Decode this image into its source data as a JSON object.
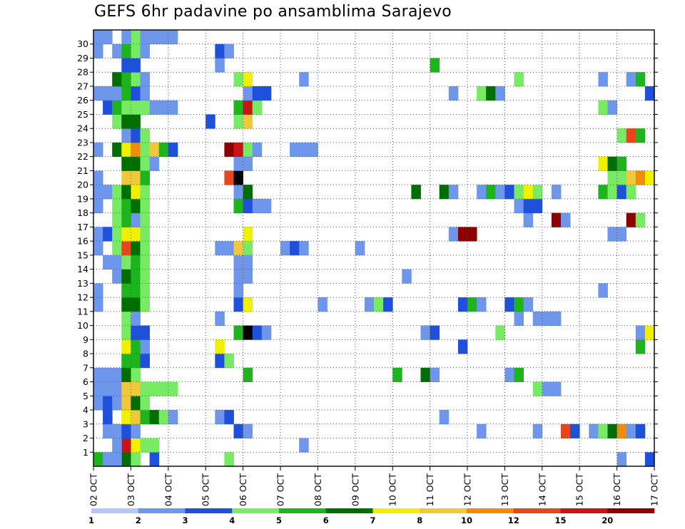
{
  "chart_data": {
    "type": "heatmap",
    "title": "GEFS 6hr padavine po ansamblima Sarajevo",
    "xlabel": "",
    "ylabel": "",
    "x_tick_labels": [
      "02 OCT",
      "03 OCT",
      "04 OCT",
      "05 OCT",
      "06 OCT",
      "07 OCT",
      "08 OCT",
      "09 OCT",
      "10 OCT",
      "11 OCT",
      "12 OCT",
      "13 OCT",
      "14 OCT",
      "15 OCT",
      "16 OCT",
      "17 OCT"
    ],
    "y_tick_labels": [
      "1",
      "2",
      "3",
      "4",
      "5",
      "6",
      "7",
      "8",
      "9",
      "10",
      "11",
      "12",
      "13",
      "14",
      "15",
      "16",
      "17",
      "18",
      "19",
      "20",
      "21",
      "22",
      "23",
      "24",
      "25",
      "26",
      "27",
      "28",
      "29",
      "30"
    ],
    "members": 31,
    "steps": 60,
    "grid": "dotted",
    "legend": {
      "position": "bottom",
      "levels": [
        1,
        2,
        3,
        4,
        5,
        6,
        7,
        8,
        10,
        12,
        15,
        20
      ],
      "labels": [
        "1",
        "2",
        "3",
        "4",
        "5",
        "6",
        "7",
        "8",
        "10",
        "12",
        "15",
        "20"
      ],
      "colors": [
        "#b4c8f5",
        "#6e96eb",
        "#1e50dc",
        "#78eb64",
        "#1eb41e",
        "#006e00",
        "#f0f000",
        "#f0c83c",
        "#f08c0a",
        "#e6461e",
        "#c81414",
        "#8c0000"
      ]
    },
    "cells": [
      [
        0,
        0,
        4
      ],
      [
        0,
        3,
        5
      ],
      [
        0,
        4,
        3
      ],
      [
        0,
        6,
        2
      ],
      [
        0,
        14,
        3
      ],
      [
        0,
        59,
        2
      ],
      [
        0,
        1,
        1
      ],
      [
        0,
        2,
        1
      ],
      [
        0,
        56,
        1
      ],
      [
        1,
        3,
        10
      ],
      [
        1,
        4,
        6
      ],
      [
        1,
        5,
        3
      ],
      [
        1,
        6,
        3
      ],
      [
        1,
        2,
        1
      ],
      [
        1,
        22,
        1
      ],
      [
        2,
        1,
        1
      ],
      [
        2,
        2,
        1
      ],
      [
        2,
        3,
        2
      ],
      [
        2,
        4,
        1
      ],
      [
        2,
        15,
        2
      ],
      [
        2,
        16,
        1
      ],
      [
        2,
        41,
        1
      ],
      [
        2,
        47,
        1
      ],
      [
        2,
        50,
        9
      ],
      [
        2,
        51,
        2
      ],
      [
        2,
        53,
        1
      ],
      [
        2,
        54,
        3
      ],
      [
        2,
        55,
        5
      ],
      [
        2,
        56,
        8
      ],
      [
        2,
        57,
        1
      ],
      [
        2,
        58,
        2
      ],
      [
        3,
        1,
        2
      ],
      [
        3,
        3,
        6
      ],
      [
        3,
        4,
        7
      ],
      [
        3,
        5,
        4
      ],
      [
        3,
        6,
        5
      ],
      [
        3,
        7,
        3
      ],
      [
        3,
        8,
        1
      ],
      [
        3,
        13,
        1
      ],
      [
        3,
        14,
        2
      ],
      [
        3,
        37,
        1
      ],
      [
        4,
        0,
        1
      ],
      [
        4,
        1,
        2
      ],
      [
        4,
        2,
        1
      ],
      [
        4,
        3,
        7
      ],
      [
        4,
        4,
        5
      ],
      [
        4,
        5,
        3
      ],
      [
        5,
        0,
        1
      ],
      [
        5,
        1,
        1
      ],
      [
        5,
        2,
        1
      ],
      [
        5,
        3,
        7
      ],
      [
        5,
        4,
        7
      ],
      [
        5,
        5,
        3
      ],
      [
        5,
        6,
        3
      ],
      [
        5,
        7,
        3
      ],
      [
        5,
        8,
        3
      ],
      [
        5,
        47,
        3
      ],
      [
        5,
        48,
        1
      ],
      [
        5,
        49,
        1
      ],
      [
        6,
        0,
        1
      ],
      [
        6,
        1,
        1
      ],
      [
        6,
        2,
        1
      ],
      [
        6,
        3,
        5
      ],
      [
        6,
        4,
        3
      ],
      [
        6,
        16,
        4
      ],
      [
        6,
        32,
        4
      ],
      [
        6,
        35,
        5
      ],
      [
        6,
        36,
        1
      ],
      [
        6,
        44,
        1
      ],
      [
        6,
        45,
        4
      ],
      [
        7,
        3,
        4
      ],
      [
        7,
        4,
        4
      ],
      [
        7,
        5,
        2
      ],
      [
        7,
        13,
        2
      ],
      [
        7,
        14,
        3
      ],
      [
        8,
        3,
        6
      ],
      [
        8,
        4,
        4
      ],
      [
        8,
        5,
        1
      ],
      [
        8,
        13,
        6
      ],
      [
        8,
        39,
        2
      ],
      [
        8,
        58,
        4
      ],
      [
        9,
        3,
        3
      ],
      [
        9,
        4,
        2
      ],
      [
        9,
        5,
        2
      ],
      [
        9,
        15,
        4
      ],
      [
        9,
        16,
        12
      ],
      [
        9,
        17,
        2
      ],
      [
        9,
        18,
        1
      ],
      [
        9,
        35,
        1
      ],
      [
        9,
        36,
        2
      ],
      [
        9,
        43,
        3
      ],
      [
        9,
        58,
        1
      ],
      [
        9,
        59,
        6
      ],
      [
        10,
        3,
        3
      ],
      [
        10,
        4,
        1
      ],
      [
        10,
        13,
        1
      ],
      [
        10,
        45,
        1
      ],
      [
        10,
        47,
        1
      ],
      [
        10,
        48,
        1
      ],
      [
        10,
        49,
        1
      ],
      [
        11,
        0,
        1
      ],
      [
        11,
        3,
        5
      ],
      [
        11,
        4,
        5
      ],
      [
        11,
        5,
        3
      ],
      [
        11,
        15,
        2
      ],
      [
        11,
        16,
        6
      ],
      [
        11,
        24,
        1
      ],
      [
        11,
        29,
        1
      ],
      [
        11,
        30,
        3
      ],
      [
        11,
        31,
        2
      ],
      [
        11,
        39,
        2
      ],
      [
        11,
        40,
        4
      ],
      [
        11,
        41,
        1
      ],
      [
        11,
        44,
        2
      ],
      [
        11,
        45,
        4
      ],
      [
        11,
        46,
        1
      ],
      [
        12,
        0,
        1
      ],
      [
        12,
        3,
        4
      ],
      [
        12,
        4,
        4
      ],
      [
        12,
        5,
        3
      ],
      [
        12,
        15,
        1
      ],
      [
        12,
        54,
        1
      ],
      [
        13,
        2,
        1
      ],
      [
        13,
        3,
        5
      ],
      [
        13,
        4,
        4
      ],
      [
        13,
        5,
        3
      ],
      [
        13,
        15,
        1
      ],
      [
        13,
        16,
        1
      ],
      [
        13,
        33,
        1
      ],
      [
        14,
        1,
        1
      ],
      [
        14,
        2,
        1
      ],
      [
        14,
        3,
        3
      ],
      [
        14,
        4,
        4
      ],
      [
        14,
        5,
        3
      ],
      [
        14,
        15,
        1
      ],
      [
        14,
        16,
        1
      ],
      [
        15,
        0,
        1
      ],
      [
        15,
        2,
        3
      ],
      [
        15,
        3,
        9
      ],
      [
        15,
        4,
        5
      ],
      [
        15,
        5,
        3
      ],
      [
        15,
        13,
        1
      ],
      [
        15,
        14,
        1
      ],
      [
        15,
        15,
        7
      ],
      [
        15,
        16,
        3
      ],
      [
        15,
        20,
        1
      ],
      [
        15,
        21,
        2
      ],
      [
        15,
        22,
        1
      ],
      [
        15,
        28,
        1
      ],
      [
        16,
        0,
        1
      ],
      [
        16,
        1,
        2
      ],
      [
        16,
        2,
        3
      ],
      [
        16,
        3,
        6
      ],
      [
        16,
        4,
        6
      ],
      [
        16,
        5,
        3
      ],
      [
        16,
        16,
        6
      ],
      [
        16,
        38,
        1
      ],
      [
        16,
        39,
        11
      ],
      [
        16,
        40,
        11
      ],
      [
        16,
        55,
        1
      ],
      [
        16,
        56,
        1
      ],
      [
        17,
        2,
        3
      ],
      [
        17,
        3,
        4
      ],
      [
        17,
        4,
        1
      ],
      [
        17,
        5,
        3
      ],
      [
        17,
        46,
        1
      ],
      [
        17,
        49,
        11
      ],
      [
        17,
        50,
        1
      ],
      [
        17,
        57,
        11
      ],
      [
        17,
        58,
        3
      ],
      [
        18,
        0,
        1
      ],
      [
        18,
        2,
        3
      ],
      [
        18,
        3,
        4
      ],
      [
        18,
        4,
        5
      ],
      [
        18,
        5,
        3
      ],
      [
        18,
        15,
        4
      ],
      [
        18,
        16,
        2
      ],
      [
        18,
        17,
        1
      ],
      [
        18,
        18,
        1
      ],
      [
        18,
        45,
        1
      ],
      [
        18,
        46,
        2
      ],
      [
        18,
        47,
        2
      ],
      [
        19,
        0,
        1
      ],
      [
        19,
        1,
        1
      ],
      [
        19,
        2,
        3
      ],
      [
        19,
        3,
        5
      ],
      [
        19,
        4,
        6
      ],
      [
        19,
        5,
        3
      ],
      [
        19,
        15,
        1
      ],
      [
        19,
        16,
        5
      ],
      [
        19,
        34,
        5
      ],
      [
        19,
        37,
        5
      ],
      [
        19,
        38,
        1
      ],
      [
        19,
        41,
        1
      ],
      [
        19,
        42,
        4
      ],
      [
        19,
        43,
        1
      ],
      [
        19,
        44,
        2
      ],
      [
        19,
        45,
        3
      ],
      [
        19,
        46,
        6
      ],
      [
        19,
        47,
        3
      ],
      [
        19,
        49,
        1
      ],
      [
        19,
        54,
        4
      ],
      [
        19,
        55,
        3
      ],
      [
        19,
        56,
        2
      ],
      [
        19,
        57,
        3
      ],
      [
        20,
        0,
        1
      ],
      [
        20,
        3,
        7
      ],
      [
        20,
        4,
        7
      ],
      [
        20,
        5,
        4
      ],
      [
        20,
        14,
        9
      ],
      [
        20,
        15,
        12
      ],
      [
        20,
        55,
        3
      ],
      [
        20,
        56,
        3
      ],
      [
        20,
        57,
        7
      ],
      [
        20,
        58,
        8
      ],
      [
        20,
        59,
        6
      ],
      [
        21,
        3,
        5
      ],
      [
        21,
        4,
        5
      ],
      [
        21,
        5,
        3
      ],
      [
        21,
        6,
        1
      ],
      [
        21,
        15,
        1
      ],
      [
        21,
        16,
        1
      ],
      [
        21,
        54,
        6
      ],
      [
        21,
        55,
        5
      ],
      [
        21,
        56,
        4
      ],
      [
        22,
        0,
        1
      ],
      [
        22,
        2,
        5
      ],
      [
        22,
        3,
        6
      ],
      [
        22,
        4,
        8
      ],
      [
        22,
        5,
        3
      ],
      [
        22,
        6,
        7
      ],
      [
        22,
        7,
        4
      ],
      [
        22,
        8,
        2
      ],
      [
        22,
        14,
        11
      ],
      [
        22,
        15,
        10
      ],
      [
        22,
        16,
        3
      ],
      [
        22,
        17,
        1
      ],
      [
        22,
        21,
        1
      ],
      [
        22,
        22,
        1
      ],
      [
        22,
        23,
        1
      ],
      [
        23,
        3,
        1
      ],
      [
        23,
        4,
        2
      ],
      [
        23,
        5,
        3
      ],
      [
        23,
        56,
        3
      ],
      [
        23,
        57,
        9
      ],
      [
        23,
        58,
        4
      ],
      [
        24,
        2,
        3
      ],
      [
        24,
        3,
        5
      ],
      [
        24,
        4,
        5
      ],
      [
        24,
        12,
        2
      ],
      [
        24,
        15,
        3
      ],
      [
        24,
        16,
        7
      ],
      [
        25,
        1,
        2
      ],
      [
        25,
        2,
        4
      ],
      [
        25,
        3,
        3
      ],
      [
        25,
        4,
        3
      ],
      [
        25,
        5,
        3
      ],
      [
        25,
        6,
        1
      ],
      [
        25,
        7,
        1
      ],
      [
        25,
        8,
        1
      ],
      [
        25,
        15,
        4
      ],
      [
        25,
        16,
        10
      ],
      [
        25,
        17,
        3
      ],
      [
        25,
        54,
        3
      ],
      [
        25,
        55,
        1
      ],
      [
        26,
        0,
        1
      ],
      [
        26,
        1,
        1
      ],
      [
        26,
        2,
        1
      ],
      [
        26,
        3,
        4
      ],
      [
        26,
        4,
        2
      ],
      [
        26,
        5,
        1
      ],
      [
        26,
        16,
        1
      ],
      [
        26,
        17,
        2
      ],
      [
        26,
        18,
        2
      ],
      [
        26,
        38,
        1
      ],
      [
        26,
        41,
        3
      ],
      [
        26,
        42,
        5
      ],
      [
        26,
        43,
        1
      ],
      [
        26,
        59,
        2
      ],
      [
        27,
        2,
        5
      ],
      [
        27,
        3,
        4
      ],
      [
        27,
        4,
        3
      ],
      [
        27,
        5,
        1
      ],
      [
        27,
        15,
        3
      ],
      [
        27,
        16,
        6
      ],
      [
        27,
        22,
        1
      ],
      [
        27,
        45,
        3
      ],
      [
        27,
        54,
        1
      ],
      [
        27,
        57,
        1
      ],
      [
        27,
        58,
        4
      ],
      [
        28,
        3,
        2
      ],
      [
        28,
        4,
        2
      ],
      [
        28,
        13,
        1
      ],
      [
        28,
        36,
        4
      ],
      [
        29,
        0,
        1
      ],
      [
        29,
        2,
        1
      ],
      [
        29,
        3,
        4
      ],
      [
        29,
        4,
        3
      ],
      [
        29,
        5,
        1
      ],
      [
        29,
        13,
        2
      ],
      [
        29,
        14,
        1
      ],
      [
        30,
        0,
        1
      ],
      [
        30,
        1,
        1
      ],
      [
        30,
        3,
        1
      ],
      [
        30,
        4,
        3
      ],
      [
        30,
        5,
        1
      ],
      [
        30,
        6,
        1
      ],
      [
        30,
        7,
        1
      ],
      [
        30,
        8,
        1
      ]
    ]
  }
}
